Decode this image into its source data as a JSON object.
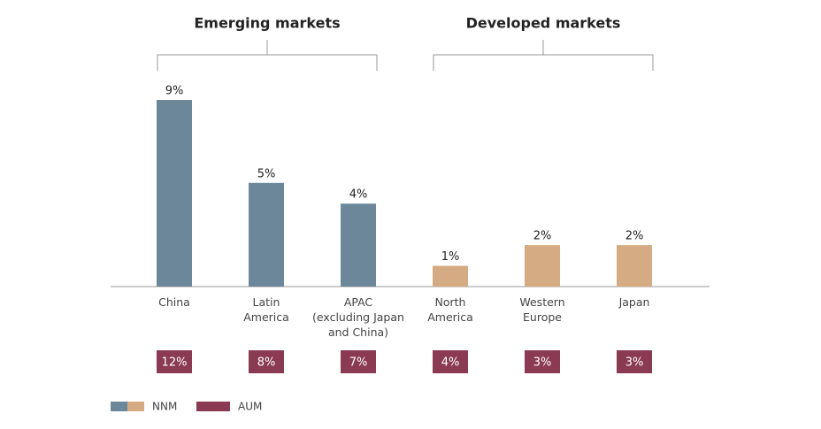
{
  "chart_data": {
    "type": "bar",
    "categories": [
      "China",
      "Latin\nAmerica",
      "APAC\n(excluding Japan\nand China)",
      "North\nAmerica",
      "Western\nEurope",
      "Japan"
    ],
    "groups": [
      {
        "name": "Emerging markets",
        "start": 0,
        "end": 2
      },
      {
        "name": "Developed markets",
        "start": 3,
        "end": 5
      }
    ],
    "ylim": [
      0,
      9
    ],
    "series": [
      {
        "name": "NNM",
        "colors": [
          "#6b8799",
          "#6b8799",
          "#6b8799",
          "#d4ab82",
          "#d4ab82",
          "#d4ab82"
        ],
        "values": [
          9,
          5,
          4,
          1,
          2,
          2
        ],
        "value_labels": [
          "9%",
          "5%",
          "4%",
          "1%",
          "2%",
          "2%"
        ]
      },
      {
        "name": "AUM",
        "color": "#8a3a52",
        "values": [
          12,
          8,
          7,
          4,
          3,
          3
        ],
        "value_labels": [
          "12%",
          "8%",
          "7%",
          "4%",
          "3%",
          "3%"
        ]
      }
    ]
  }
}
